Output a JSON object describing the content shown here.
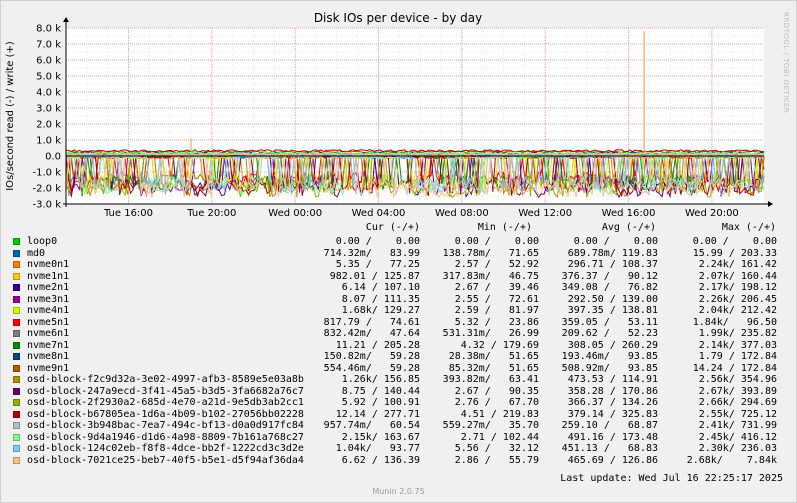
{
  "chart_data": {
    "type": "line",
    "title": "Disk IOs per device - by day",
    "ylabel": "IOs/second read (-) / write (+)",
    "ylim": [
      -3000,
      8000
    ],
    "yticks": [
      {
        "v": 8000,
        "label": "8.0 k"
      },
      {
        "v": 7000,
        "label": "7.0 k"
      },
      {
        "v": 6000,
        "label": "6.0 k"
      },
      {
        "v": 5000,
        "label": "5.0 k"
      },
      {
        "v": 4000,
        "label": "4.0 k"
      },
      {
        "v": 3000,
        "label": "3.0 k"
      },
      {
        "v": 2000,
        "label": "2.0 k"
      },
      {
        "v": 1000,
        "label": "1.0 k"
      },
      {
        "v": 0,
        "label": "0.0"
      },
      {
        "v": -1000,
        "label": "-1.0 k"
      },
      {
        "v": -2000,
        "label": "-2.0 k"
      },
      {
        "v": -3000,
        "label": "-3.0 k"
      }
    ],
    "xlim": [
      "Tue 13:00",
      "Wed 22:30"
    ],
    "xticks": [
      "Tue 16:00",
      "Tue 20:00",
      "Wed 00:00",
      "Wed 04:00",
      "Wed 08:00",
      "Wed 12:00",
      "Wed 16:00",
      "Wed 20:00"
    ],
    "grid": true,
    "legend": "bottom",
    "spikes": [
      {
        "x": "Tue 19:00",
        "y": 1100,
        "color": "#ffb76e"
      },
      {
        "x": "Wed 16:45",
        "y": 7800,
        "color": "#ffb76e"
      }
    ]
  },
  "legend": {
    "headers": {
      "cur": "Cur (-/+)",
      "min": "Min (-/+)",
      "avg": "Avg (-/+)",
      "max": "Max (-/+)"
    },
    "rows": [
      {
        "name": "loop0",
        "color": "#00cc00",
        "cur": "0.00 /    0.00",
        "min": "0.00 /    0.00",
        "avg": "0.00 /    0.00",
        "max": "0.00 /    0.00"
      },
      {
        "name": "md0",
        "color": "#0066b3",
        "cur": "714.32m/   83.99",
        "min": "138.78m/   71.65",
        "avg": "689.78m/ 119.83",
        "max": "15.99 / 203.33"
      },
      {
        "name": "nvme0n1",
        "color": "#ff8000",
        "cur": "5.35 /   77.25",
        "min": "2.57 /   52.92",
        "avg": "296.71 / 108.37",
        "max": "2.24k/ 161.42"
      },
      {
        "name": "nvme1n1",
        "color": "#ffcc00",
        "cur": "982.01 / 125.87",
        "min": "317.83m/   46.75",
        "avg": "376.37 /   90.12",
        "max": "2.07k/ 160.44"
      },
      {
        "name": "nvme2n1",
        "color": "#330099",
        "cur": "6.14 / 107.10",
        "min": "2.67 /   39.46",
        "avg": "349.08 /   76.82",
        "max": "2.17k/ 198.12"
      },
      {
        "name": "nvme3n1",
        "color": "#990099",
        "cur": "8.07 / 111.35",
        "min": "2.55 /   72.61",
        "avg": "292.50 / 139.00",
        "max": "2.26k/ 206.45"
      },
      {
        "name": "nvme4n1",
        "color": "#ccff00",
        "cur": "1.68k/ 129.27",
        "min": "2.59 /   81.97",
        "avg": "397.35 / 138.81",
        "max": "2.04k/ 212.42"
      },
      {
        "name": "nvme5n1",
        "color": "#ff0000",
        "cur": "817.79 /   74.61",
        "min": "5.32 /   23.86",
        "avg": "359.05 /   53.11",
        "max": "1.84k/   96.50"
      },
      {
        "name": "nvme6n1",
        "color": "#808080",
        "cur": "832.42m/   47.64",
        "min": "531.31m/   26.99",
        "avg": "209.62 /   52.23",
        "max": "1.99k/ 235.82"
      },
      {
        "name": "nvme7n1",
        "color": "#008f00",
        "cur": "11.21 / 205.28",
        "min": "4.32 / 179.69",
        "avg": "308.05 / 260.29",
        "max": "2.14k/ 377.03"
      },
      {
        "name": "nvme8n1",
        "color": "#00487d",
        "cur": "150.82m/   59.28",
        "min": "28.38m/   51.65",
        "avg": "193.46m/   93.85",
        "max": "1.79 / 172.84"
      },
      {
        "name": "nvme9n1",
        "color": "#b35a00",
        "cur": "554.46m/   59.28",
        "min": "85.32m/   51.65",
        "avg": "508.92m/   93.85",
        "max": "14.24 / 172.84"
      },
      {
        "name": "osd-block-f2c9d32a-3e02-4997-afb3-8589e5e03a8b",
        "color": "#b38f00",
        "cur": "1.26k/ 156.85",
        "min": "393.82m/   63.41",
        "avg": "473.53 / 114.91",
        "max": "2.56k/ 354.96"
      },
      {
        "name": "osd-block-247a9ecd-3f41-45a5-b3d5-3fa6682a76c7",
        "color": "#6b006b",
        "cur": "8.75 / 140.44",
        "min": "2.67 /   90.35",
        "avg": "358.28 / 170.86",
        "max": "2.67k/ 393.89"
      },
      {
        "name": "osd-block-2f2930a2-685d-4e70-a21d-9e5db3ab2cc1",
        "color": "#8fb300",
        "cur": "5.92 / 100.91",
        "min": "2.76 /   67.70",
        "avg": "366.37 / 134.26",
        "max": "2.66k/ 294.69"
      },
      {
        "name": "osd-block-b67805ea-1d6a-4b09-b102-27056bb02228",
        "color": "#b30000",
        "cur": "12.14 / 277.71",
        "min": "4.51 / 219.83",
        "avg": "379.14 / 325.83",
        "max": "2.55k/ 725.12"
      },
      {
        "name": "osd-block-3b948bac-7ea7-494c-bf13-d0a0d917fc84",
        "color": "#bebebe",
        "cur": "957.74m/   60.54",
        "min": "559.27m/   35.70",
        "avg": "259.10 /   68.87",
        "max": "2.41k/ 731.99"
      },
      {
        "name": "osd-block-9d4a1946-d1d6-4a98-8809-7b161a768c27",
        "color": "#80ff80",
        "cur": "2.15k/ 163.67",
        "min": "2.71 / 102.44",
        "avg": "491.16 / 173.48",
        "max": "2.45k/ 416.12"
      },
      {
        "name": "osd-block-124c02eb-f8f8-4dce-bb2f-1222cd3c3d2e",
        "color": "#80c9ff",
        "cur": "1.04k/   93.77",
        "min": "5.56 /   32.12",
        "avg": "451.13 /   68.83",
        "max": "2.30k/ 236.03"
      },
      {
        "name": "osd-block-7021ce25-beb7-40f5-b5e1-d5f94af36da4",
        "color": "#ffc080",
        "cur": "6.62 / 136.39",
        "min": "2.86 /   55.79",
        "avg": "465.69 / 126.86",
        "max": "2.68k/    7.84k"
      }
    ]
  },
  "footer": {
    "last_update": "Last update: Wed Jul 16 22:25:17 2025",
    "munin_version": "Munin 2.0.75",
    "side_label": "RRDTOOL / TOBI OETIKER"
  }
}
